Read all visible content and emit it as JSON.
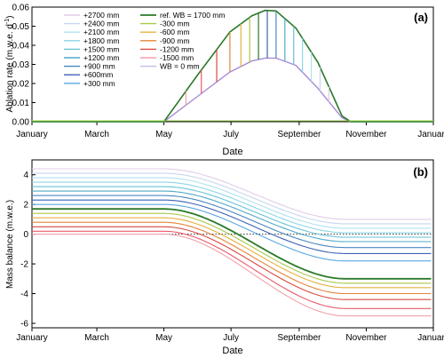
{
  "chart_data": [
    {
      "type": "line",
      "panel_label": "(a)",
      "xlabel": "Date",
      "ylabel": "Ablation rate (m.w.e. d",
      "ylabel_sup": "-1",
      "ylabel_close": ")",
      "x_tick_labels": [
        "January",
        "March",
        "May",
        "July",
        "September",
        "November",
        "January"
      ],
      "x_tick_days": [
        0,
        59,
        120,
        181,
        243,
        304,
        365
      ],
      "xlim_days": [
        0,
        365
      ],
      "ylim": [
        0,
        0.06
      ],
      "y_ticks": [
        0.0,
        0.01,
        0.02,
        0.03,
        0.04,
        0.05,
        0.06
      ],
      "y_tick_labels": [
        "0.00",
        "0.01",
        "0.02",
        "0.03",
        "0.04",
        "0.05",
        "0.06"
      ],
      "curves": {
        "upper": {
          "color": "#2a7a2a",
          "days": [
            0,
            120,
            150,
            180,
            200,
            212,
            222,
            240,
            260,
            282,
            290,
            365
          ],
          "values": [
            0,
            0,
            0.024,
            0.047,
            0.0555,
            0.0583,
            0.058,
            0.049,
            0.031,
            0.003,
            0,
            0
          ]
        },
        "lower": {
          "color": "#a98ad6",
          "days": [
            0,
            120,
            150,
            180,
            200,
            212,
            222,
            240,
            260,
            282,
            290,
            365
          ],
          "values": [
            0,
            0,
            0.013,
            0.026,
            0.0318,
            0.0333,
            0.0333,
            0.0295,
            0.0175,
            0.002,
            0,
            0
          ]
        }
      },
      "line_colors": [
        "#e0cce8",
        "#c6d6f0",
        "#b0e2f0",
        "#8ad6e8",
        "#68c2d6",
        "#50a8c8",
        "#4a86c0",
        "#3e62b4",
        "#2a7a2a",
        "#a8c84a",
        "#e8b040",
        "#e48438",
        "#d84a40",
        "#e85a6a",
        "#f2a0a8",
        "#a98ad6"
      ],
      "vlines": [
        {
          "day": 206,
          "color": "#2a7a2a"
        },
        {
          "day": 198,
          "color": "#a8c84a"
        },
        {
          "day": 190,
          "color": "#e8b040"
        },
        {
          "day": 180,
          "color": "#e48438"
        },
        {
          "day": 168,
          "color": "#d84a40"
        },
        {
          "day": 154,
          "color": "#e85a6a"
        },
        {
          "day": 140,
          "color": "#f2a0a8"
        },
        {
          "day": 214,
          "color": "#3e62b4"
        },
        {
          "day": 222,
          "color": "#4a86c0"
        },
        {
          "day": 230,
          "color": "#50a8c8"
        },
        {
          "day": 238,
          "color": "#68c2d6"
        },
        {
          "day": 246,
          "color": "#8ad6e8"
        },
        {
          "day": 254,
          "color": "#b0e2f0"
        },
        {
          "day": 262,
          "color": "#c6d6f0"
        },
        {
          "day": 270,
          "color": "#e0cce8"
        }
      ],
      "legend_left": [
        {
          "label": "+2700 mm",
          "color": "#e0cce8"
        },
        {
          "label": "+2400 mm",
          "color": "#c6d6f0"
        },
        {
          "label": "+2100 mm",
          "color": "#b0e2f0"
        },
        {
          "label": "+1800 mm",
          "color": "#8ad6e8"
        },
        {
          "label": "+1500 mm",
          "color": "#68c2d6"
        },
        {
          "label": "+1200 mm",
          "color": "#50a8c8"
        },
        {
          "label": "+900 mm",
          "color": "#4a86c0"
        },
        {
          "label": "+600mm",
          "color": "#3e62b4"
        },
        {
          "label": "+300 mm",
          "color": "#5aa8e0"
        }
      ],
      "legend_right": [
        {
          "label": "ref. WB = 1700 mm",
          "color": "#2a7a2a"
        },
        {
          "label": "-300 mm",
          "color": "#a8c84a"
        },
        {
          "label": "-600 mm",
          "color": "#e8b040"
        },
        {
          "label": "-900 mm",
          "color": "#e48438"
        },
        {
          "label": "-1200 mm",
          "color": "#d84a40"
        },
        {
          "label": "-1500 mm",
          "color": "#f2a0a8"
        },
        {
          "label": "WB = 0 mm",
          "color": "#c8b8e8"
        }
      ]
    },
    {
      "type": "line",
      "panel_label": "(b)",
      "xlabel": "Date",
      "ylabel": "Mass balance (m.w.e.)",
      "x_tick_labels": [
        "January",
        "March",
        "May",
        "July",
        "September",
        "November",
        "January"
      ],
      "x_tick_days": [
        0,
        59,
        120,
        181,
        243,
        304,
        365
      ],
      "xlim_days": [
        0,
        365
      ],
      "ylim": [
        -6.3,
        5.0
      ],
      "y_ticks": [
        -6,
        -4,
        -2,
        0,
        2,
        4
      ],
      "y_tick_labels": [
        "-6",
        "-4",
        "-2",
        "0",
        "2",
        "4"
      ],
      "zero_line": "dotted",
      "series": [
        {
          "start": 4.4,
          "end": 1.0,
          "color": "#e0cce8"
        },
        {
          "start": 4.1,
          "end": 0.7,
          "color": "#c6d6f0"
        },
        {
          "start": 3.8,
          "end": 0.4,
          "color": "#b0e2f0"
        },
        {
          "start": 3.5,
          "end": 0.1,
          "color": "#8ad6e8"
        },
        {
          "start": 3.2,
          "end": -0.2,
          "color": "#68c2d6"
        },
        {
          "start": 2.9,
          "end": -0.5,
          "color": "#50a8c8"
        },
        {
          "start": 2.6,
          "end": -0.9,
          "color": "#4a86c0"
        },
        {
          "start": 2.3,
          "end": -1.3,
          "color": "#3e62b4"
        },
        {
          "start": 2.0,
          "end": -1.8,
          "color": "#5aa8e0"
        },
        {
          "start": 1.7,
          "end": -3.0,
          "color": "#2a7a2a",
          "bold": true
        },
        {
          "start": 1.4,
          "end": -3.3,
          "color": "#a8c84a"
        },
        {
          "start": 1.1,
          "end": -3.6,
          "color": "#e8b040"
        },
        {
          "start": 0.8,
          "end": -4.0,
          "color": "#e48438"
        },
        {
          "start": 0.5,
          "end": -4.4,
          "color": "#d84a40"
        },
        {
          "start": 0.2,
          "end": -5.0,
          "color": "#e85a6a"
        },
        {
          "start": 0.0,
          "end": -5.5,
          "color": "#f2a0a8"
        }
      ],
      "transition_days": [
        120,
        285
      ]
    }
  ]
}
